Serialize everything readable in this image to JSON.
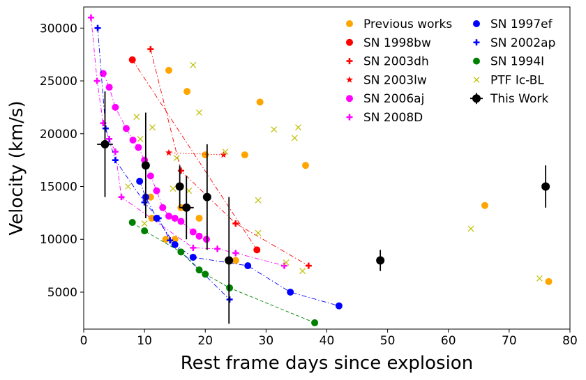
{
  "chart_data": {
    "type": "scatter",
    "title": "",
    "xlabel": "Rest frame days since explosion",
    "ylabel": "Velocity (km/s)",
    "xlim": [
      0,
      80
    ],
    "ylim": [
      1500,
      32000
    ],
    "xticks": [
      0,
      10,
      20,
      30,
      40,
      50,
      60,
      70,
      80
    ],
    "xtick_labels": [
      "0",
      "10",
      "20",
      "30",
      "40",
      "50",
      "60",
      "70",
      "80"
    ],
    "yticks": [
      5000,
      10000,
      15000,
      20000,
      25000,
      30000
    ],
    "ytick_labels": [
      "5000",
      "10000",
      "15000",
      "20000",
      "25000",
      "30000"
    ],
    "legend_position": "top-right",
    "series": [
      {
        "name": "Previous works",
        "color": "#ffa500",
        "marker": "circle",
        "line": "none",
        "points": [
          [
            14,
            26000
          ],
          [
            17,
            24000
          ],
          [
            29,
            23000
          ],
          [
            36.5,
            17000
          ],
          [
            20,
            18000
          ],
          [
            26.5,
            18000
          ],
          [
            16,
            13000
          ],
          [
            19,
            12000
          ],
          [
            11,
            14000
          ],
          [
            11.2,
            12000
          ],
          [
            13.5,
            10000
          ],
          [
            15,
            10000
          ],
          [
            25,
            8000
          ],
          [
            66,
            13200
          ],
          [
            76.5,
            6000
          ]
        ]
      },
      {
        "name": "SN 1998bw",
        "color": "#ff0000",
        "marker": "circle",
        "line": "dashdot",
        "points": [
          [
            8,
            27000
          ],
          [
            28.5,
            9000
          ]
        ]
      },
      {
        "name": "SN 2003dh",
        "color": "#ff0000",
        "marker": "plus",
        "line": "dashdot",
        "points": [
          [
            11,
            28000
          ],
          [
            16,
            16500
          ],
          [
            25,
            11500
          ],
          [
            37,
            7500
          ]
        ]
      },
      {
        "name": "SN 2003lw",
        "color": "#ff0000",
        "marker": "star",
        "line": "dotted",
        "points": [
          [
            14,
            18200
          ],
          [
            23,
            18000
          ]
        ]
      },
      {
        "name": "SN 2006aj",
        "color": "#ff00ff",
        "marker": "circle",
        "line": "dashdot",
        "points": [
          [
            3.2,
            25700
          ],
          [
            4.2,
            24400
          ],
          [
            5.2,
            22500
          ],
          [
            7,
            20500
          ],
          [
            8.1,
            19400
          ],
          [
            9,
            18700
          ],
          [
            10,
            17500
          ],
          [
            11,
            16000
          ],
          [
            12,
            14600
          ],
          [
            13,
            13000
          ],
          [
            14,
            12200
          ],
          [
            15,
            12000
          ],
          [
            16,
            11700
          ],
          [
            18,
            10700
          ],
          [
            19,
            10300
          ],
          [
            20.2,
            10000
          ]
        ]
      },
      {
        "name": "SN 2008D",
        "color": "#ff00ff",
        "marker": "plus",
        "line": "dashdot",
        "points": [
          [
            1.2,
            31000
          ],
          [
            2.2,
            25000
          ],
          [
            3.2,
            21000
          ],
          [
            4.2,
            19500
          ],
          [
            5.2,
            18300
          ],
          [
            6.2,
            14000
          ],
          [
            18,
            9200
          ],
          [
            22,
            9100
          ],
          [
            25,
            8700
          ],
          [
            33,
            7500
          ]
        ]
      },
      {
        "name": "SN 1997ef",
        "color": "#0000ff",
        "marker": "circle",
        "line": "dashdot",
        "points": [
          [
            9.2,
            15500
          ],
          [
            10.2,
            14000
          ],
          [
            12,
            12000
          ],
          [
            15,
            9500
          ],
          [
            18,
            8300
          ],
          [
            27,
            7500
          ],
          [
            34,
            5000
          ],
          [
            42,
            3700
          ]
        ]
      },
      {
        "name": "SN 2002ap",
        "color": "#0000ff",
        "marker": "plus",
        "line": "dashdot",
        "points": [
          [
            2.3,
            30000
          ],
          [
            3.6,
            20500
          ],
          [
            5.2,
            17500
          ],
          [
            10,
            13500
          ],
          [
            12.3,
            12000
          ],
          [
            14.2,
            9900
          ],
          [
            24,
            4300
          ]
        ]
      },
      {
        "name": "SN 1994I",
        "color": "#008000",
        "marker": "circle",
        "line": "dashed",
        "points": [
          [
            8,
            11600
          ],
          [
            10,
            10800
          ],
          [
            16,
            8800
          ],
          [
            19,
            7100
          ],
          [
            20,
            6700
          ],
          [
            24,
            5400
          ],
          [
            38,
            2100
          ]
        ]
      },
      {
        "name": "PTF Ic-BL",
        "color": "#bfbf00",
        "marker": "x",
        "line": "none",
        "points": [
          [
            18,
            26500
          ],
          [
            19,
            22000
          ],
          [
            8.7,
            21600
          ],
          [
            11.3,
            20600
          ],
          [
            9.3,
            19500
          ],
          [
            31.3,
            20400
          ],
          [
            35.3,
            20600
          ],
          [
            34.7,
            19600
          ],
          [
            23.3,
            18300
          ],
          [
            15.3,
            17700
          ],
          [
            7.3,
            15000
          ],
          [
            17.3,
            14600
          ],
          [
            14.7,
            14800
          ],
          [
            28.7,
            13700
          ],
          [
            28.7,
            10600
          ],
          [
            10,
            11500
          ],
          [
            33.3,
            7800
          ],
          [
            36,
            7000
          ],
          [
            63.7,
            11000
          ],
          [
            75,
            6300
          ]
        ]
      }
    ],
    "this_work": {
      "name": "This Work",
      "color": "#000000",
      "marker": "circle",
      "points": [
        {
          "x": 3.5,
          "y": 19000,
          "xerr": 1.3,
          "yerr": 5000
        },
        {
          "x": 10.2,
          "y": 17000,
          "xerr": 0,
          "yerr": 5000
        },
        {
          "x": 15.8,
          "y": 15000,
          "xerr": 0,
          "yerr": 2000
        },
        {
          "x": 16.9,
          "y": 13000,
          "xerr": 1.2,
          "yerr": 3000
        },
        {
          "x": 20.3,
          "y": 14000,
          "xerr": 0,
          "yerr": 5000
        },
        {
          "x": 23.9,
          "y": 8000,
          "xerr": 0,
          "yerr": 6000
        },
        {
          "x": 48.8,
          "y": 8000,
          "xerr": 0,
          "yerr": 1000
        },
        {
          "x": 76.0,
          "y": 15000,
          "xerr": 0,
          "yerr": 2000
        }
      ]
    }
  }
}
